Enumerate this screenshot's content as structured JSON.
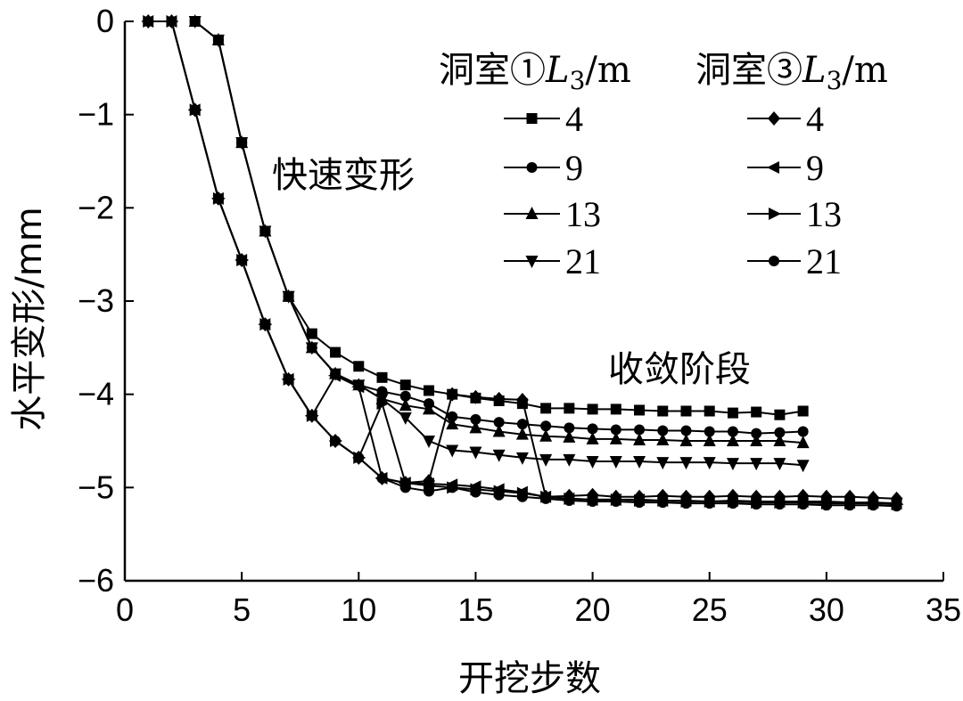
{
  "chart_data": {
    "type": "line",
    "xlabel": "开挖步数",
    "ylabel": "水平变形/mm",
    "xlim": [
      0,
      35
    ],
    "ylim": [
      -6,
      0
    ],
    "xticks": [
      0,
      5,
      10,
      15,
      20,
      25,
      30,
      35
    ],
    "yticks": [
      0,
      -1,
      -2,
      -3,
      -4,
      -5,
      -6
    ],
    "xtick_labels": [
      "0",
      "5",
      "10",
      "15",
      "20",
      "25",
      "30",
      "35"
    ],
    "ytick_labels": [
      "0",
      "−1",
      "−2",
      "−3",
      "−4",
      "−5",
      "−6"
    ],
    "grid": false,
    "annotations": [
      "快速变形",
      "收敛阶段"
    ],
    "legend": {
      "placement": "top-right",
      "groups": [
        {
          "title": "洞室①",
          "var": "L",
          "sub": "3",
          "unit": "/m"
        },
        {
          "title": "洞室③",
          "var": "L",
          "sub": "3",
          "unit": "/m"
        }
      ],
      "labels": [
        "4",
        "9",
        "13",
        "21"
      ]
    },
    "series": [
      {
        "group": 0,
        "label": "4",
        "marker": "square",
        "x": [
          3,
          4,
          5,
          6,
          7,
          8,
          9,
          10,
          11,
          12,
          13,
          14,
          15,
          16,
          17,
          18,
          19,
          20,
          21,
          22,
          23,
          24,
          25,
          26,
          27,
          28,
          29
        ],
        "y": [
          0,
          -0.2,
          -1.3,
          -2.25,
          -2.95,
          -3.35,
          -3.55,
          -3.7,
          -3.82,
          -3.9,
          -3.96,
          -4.0,
          -4.04,
          -4.07,
          -4.1,
          -4.15,
          -4.15,
          -4.16,
          -4.16,
          -4.17,
          -4.18,
          -4.18,
          -4.18,
          -4.2,
          -4.19,
          -4.22,
          -4.18
        ]
      },
      {
        "group": 0,
        "label": "9",
        "marker": "circle",
        "x": [
          3,
          4,
          5,
          6,
          7,
          8,
          9,
          10,
          11,
          12,
          13,
          14,
          15,
          16,
          17,
          18,
          19,
          20,
          21,
          22,
          23,
          24,
          25,
          26,
          27,
          28,
          29
        ],
        "y": [
          0,
          -0.2,
          -1.3,
          -2.25,
          -2.95,
          -3.5,
          -3.78,
          -3.9,
          -3.97,
          -4.02,
          -4.1,
          -4.24,
          -4.27,
          -4.3,
          -4.32,
          -4.34,
          -4.36,
          -4.37,
          -4.38,
          -4.38,
          -4.39,
          -4.39,
          -4.4,
          -4.4,
          -4.42,
          -4.41,
          -4.4
        ]
      },
      {
        "group": 0,
        "label": "13",
        "marker": "triangle-up",
        "x": [
          3,
          4,
          5,
          6,
          7,
          8,
          9,
          10,
          11,
          12,
          13,
          14,
          15,
          16,
          17,
          18,
          19,
          20,
          21,
          22,
          23,
          24,
          25,
          26,
          27,
          28,
          29
        ],
        "y": [
          0,
          -0.2,
          -1.3,
          -2.25,
          -2.95,
          -3.5,
          -3.78,
          -3.9,
          -4.05,
          -4.12,
          -4.16,
          -4.32,
          -4.36,
          -4.4,
          -4.43,
          -4.45,
          -4.46,
          -4.48,
          -4.48,
          -4.49,
          -4.49,
          -4.5,
          -4.5,
          -4.5,
          -4.5,
          -4.5,
          -4.52
        ]
      },
      {
        "group": 0,
        "label": "21",
        "marker": "triangle-down",
        "x": [
          3,
          4,
          5,
          6,
          7,
          8,
          9,
          10,
          11,
          12,
          13,
          14,
          15,
          16,
          17,
          18,
          19,
          20,
          21,
          22,
          23,
          24,
          25,
          26,
          27,
          28,
          29
        ],
        "y": [
          0,
          -0.2,
          -1.3,
          -2.25,
          -2.95,
          -3.5,
          -3.78,
          -3.9,
          -4.05,
          -4.25,
          -4.5,
          -4.6,
          -4.62,
          -4.65,
          -4.68,
          -4.7,
          -4.7,
          -4.72,
          -4.72,
          -4.72,
          -4.73,
          -4.73,
          -4.73,
          -4.74,
          -4.74,
          -4.74,
          -4.76
        ]
      },
      {
        "group": 1,
        "label": "4",
        "marker": "diamond",
        "x": [
          1,
          2,
          3,
          4,
          5,
          6,
          7,
          8,
          9,
          10,
          11,
          12,
          13,
          14,
          15,
          16,
          17,
          18,
          19,
          20,
          21,
          22,
          23,
          24,
          25,
          26,
          27,
          28,
          29,
          30,
          31,
          32,
          33
        ],
        "y": [
          0,
          0,
          -0.95,
          -1.9,
          -2.56,
          -3.25,
          -3.84,
          -4.23,
          -4.5,
          -4.68,
          -4.9,
          -4.95,
          -4.93,
          -4.0,
          -4.03,
          -4.05,
          -4.06,
          -5.1,
          -5.09,
          -5.08,
          -5.1,
          -5.1,
          -5.09,
          -5.1,
          -5.1,
          -5.09,
          -5.1,
          -5.1,
          -5.09,
          -5.1,
          -5.1,
          -5.11,
          -5.12
        ]
      },
      {
        "group": 1,
        "label": "9",
        "marker": "triangle-left",
        "x": [
          1,
          2,
          3,
          4,
          5,
          6,
          7,
          8,
          9,
          10,
          11,
          12,
          13,
          14,
          15,
          16,
          17,
          18,
          19,
          20,
          21,
          22,
          23,
          24,
          25,
          26,
          27,
          28,
          29,
          30,
          31,
          32,
          33
        ],
        "y": [
          0,
          0,
          -0.95,
          -1.9,
          -2.56,
          -3.25,
          -3.84,
          -4.23,
          -3.8,
          -3.92,
          -4.9,
          -4.95,
          -4.96,
          -4.97,
          -4.99,
          -5.02,
          -5.05,
          -5.1,
          -5.12,
          -5.13,
          -5.13,
          -5.13,
          -5.14,
          -5.14,
          -5.15,
          -5.14,
          -5.15,
          -5.15,
          -5.15,
          -5.15,
          -5.16,
          -5.16,
          -5.17
        ]
      },
      {
        "group": 1,
        "label": "13",
        "marker": "triangle-right",
        "x": [
          1,
          2,
          3,
          4,
          5,
          6,
          7,
          8,
          9,
          10,
          11,
          12,
          13,
          14,
          15,
          16,
          17,
          18,
          19,
          20,
          21,
          22,
          23,
          24,
          25,
          26,
          27,
          28,
          29,
          30,
          31,
          32,
          33
        ],
        "y": [
          0,
          0,
          -0.95,
          -1.9,
          -2.56,
          -3.25,
          -3.84,
          -4.23,
          -4.5,
          -4.68,
          -4.1,
          -4.95,
          -4.98,
          -5.0,
          -5.02,
          -5.04,
          -5.06,
          -5.1,
          -5.12,
          -5.13,
          -5.13,
          -5.14,
          -5.14,
          -5.15,
          -5.15,
          -5.15,
          -5.16,
          -5.16,
          -5.16,
          -5.17,
          -5.17,
          -5.17,
          -5.18
        ]
      },
      {
        "group": 1,
        "label": "21",
        "marker": "circle",
        "x": [
          1,
          2,
          3,
          4,
          5,
          6,
          7,
          8,
          9,
          10,
          11,
          12,
          13,
          14,
          15,
          16,
          17,
          18,
          19,
          20,
          21,
          22,
          23,
          24,
          25,
          26,
          27,
          28,
          29,
          30,
          31,
          32,
          33
        ],
        "y": [
          0,
          0,
          -0.95,
          -1.9,
          -2.56,
          -3.25,
          -3.84,
          -4.23,
          -4.5,
          -4.68,
          -4.9,
          -5.0,
          -5.04,
          -5.0,
          -5.05,
          -5.08,
          -5.1,
          -5.12,
          -5.14,
          -5.15,
          -5.15,
          -5.16,
          -5.16,
          -5.17,
          -5.17,
          -5.17,
          -5.18,
          -5.18,
          -5.18,
          -5.19,
          -5.19,
          -5.19,
          -5.2
        ]
      }
    ]
  }
}
